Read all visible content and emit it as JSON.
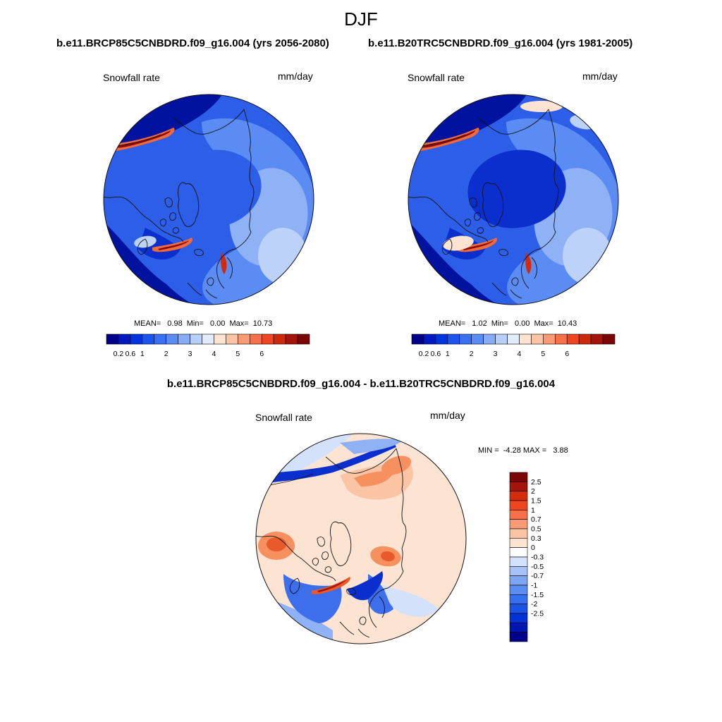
{
  "figure": {
    "season": "DJF",
    "panels": [
      {
        "id": "future",
        "title": "b.e11.BRCP85C5CNBDRD.f09_g16.004 (yrs 2056-2080)",
        "variable": "Snowfall rate",
        "units": "mm/day",
        "stats": {
          "mean_label": "MEAN=",
          "mean": "0.98",
          "min_label": "Min=",
          "min": "0.00",
          "max_label": "Max=",
          "max": "10.73"
        }
      },
      {
        "id": "historical",
        "title": "b.e11.B20TRC5CNBDRD.f09_g16.004 (yrs 1981-2005)",
        "variable": "Snowfall rate",
        "units": "mm/day",
        "stats": {
          "mean_label": "MEAN=",
          "mean": "1.02",
          "min_label": "Min=",
          "min": "0.00",
          "max_label": "Max=",
          "max": "10.43"
        }
      },
      {
        "id": "difference",
        "title": "b.e11.BRCP85C5CNBDRD.f09_g16.004 - b.e11.B20TRC5CNBDRD.f09_g16.004",
        "variable": "Snowfall rate",
        "units": "mm/day",
        "stats_text": "MIN =  -4.28 MAX =   3.88"
      }
    ],
    "colorbar_abs": {
      "colors": [
        "#00008b",
        "#0019c0",
        "#0035dd",
        "#1c55ee",
        "#3a71f2",
        "#5a8cf3",
        "#86acf5",
        "#b8cff8",
        "#e3ecfb",
        "#fde4d2",
        "#fbc4a4",
        "#f99b74",
        "#f6714a",
        "#ee4622",
        "#cc2a0c",
        "#a4140a",
        "#7c0505"
      ],
      "tick_labels": [
        "0.2",
        "0.6",
        "1",
        "2",
        "3",
        "4",
        "5",
        "6"
      ]
    },
    "colorbar_diff": {
      "colors": [
        "#7c0505",
        "#a4140a",
        "#d42d0c",
        "#ef4620",
        "#f6714a",
        "#f99b74",
        "#fbc4a4",
        "#fde4d2",
        "#ffffff",
        "#d3e1fa",
        "#a6c2f6",
        "#7ea5f3",
        "#5a8cf3",
        "#3670ee",
        "#1c52e6",
        "#0032d6",
        "#0016b0",
        "#00008b"
      ],
      "tick_labels": [
        "2.5",
        "2",
        "1.5",
        "1",
        "0.7",
        "0.5",
        "0.3",
        "0",
        "-0.3",
        "-0.5",
        "-0.7",
        "-1",
        "-1.5",
        "-2",
        "-2.5"
      ]
    },
    "map_palette": {
      "deep": "#00129e",
      "dark": "#0a2fcc",
      "mid": "#2c5ee8",
      "light": "#5a8cf3",
      "pale": "#8fb2f6",
      "paler": "#bcd2f8",
      "cream": "#fde4d2",
      "salmon": "#f9a079",
      "orange": "#f06a3c",
      "red": "#d22a0c",
      "darkred": "#8a0808",
      "dpos1": "#fde4d2",
      "dpos2": "#fbc4a4",
      "dpos3": "#f6905f",
      "dpos4": "#e85a2a",
      "dneg1": "#d3e1fa",
      "dneg2": "#8fb2f6",
      "dneg3": "#3d6fec",
      "dneg4": "#0a2fcc"
    }
  }
}
